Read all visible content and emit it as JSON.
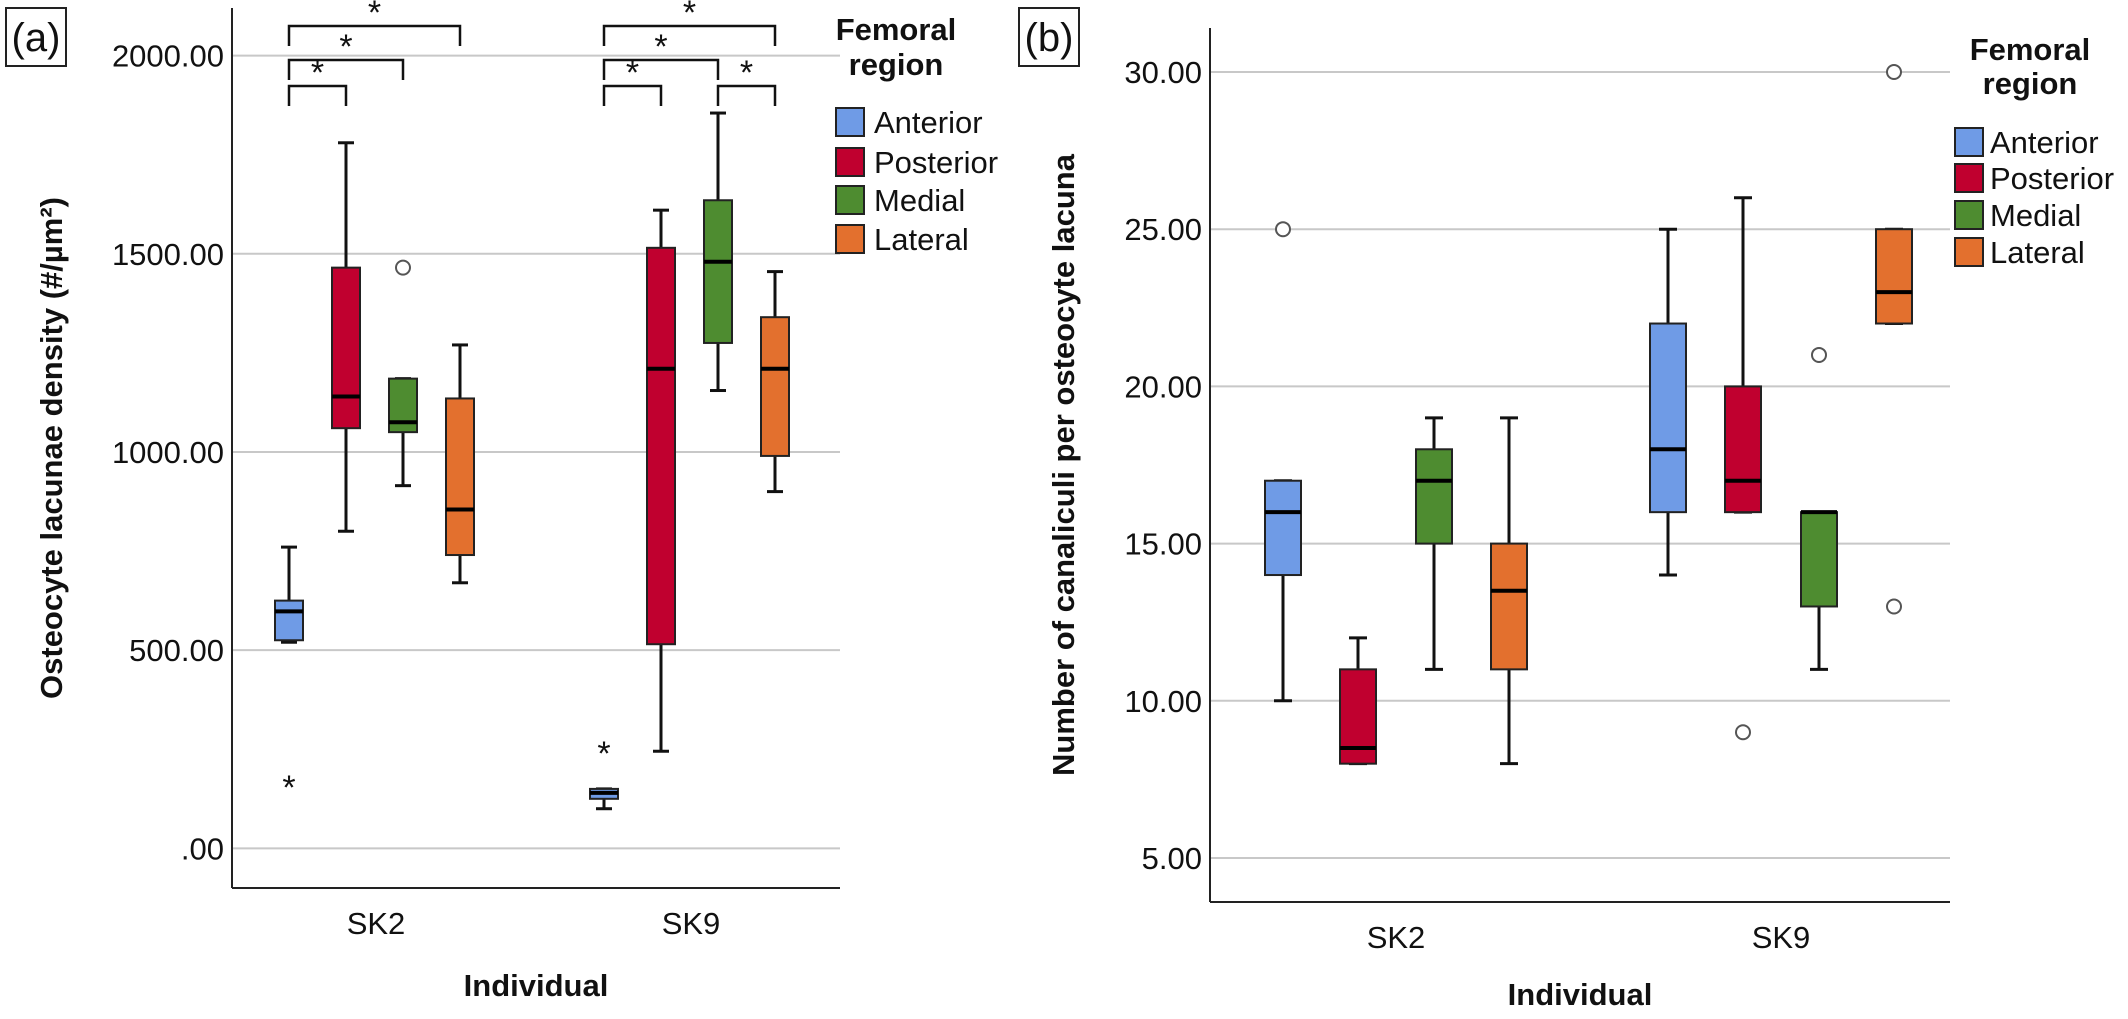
{
  "chart_data": [
    {
      "type": "box",
      "panel_label": "(a)",
      "xlabel": "Individual",
      "ylabel": "Osteocyte lacunae density  (#/µm²)",
      "ylim": [
        -100,
        2120
      ],
      "yticks": [
        0,
        500,
        1000,
        1500,
        2000
      ],
      "ytick_labels": [
        ".00",
        "500.00",
        "1000.00",
        "1500.00",
        "2000.00"
      ],
      "grid": true,
      "categories": [
        "SK2",
        "SK9"
      ],
      "legend": {
        "title": "Femoral region",
        "title_lines": [
          "Femoral",
          "region"
        ],
        "entries": [
          "Anterior",
          "Posterior",
          "Medial",
          "Lateral"
        ],
        "placement": "top-right"
      },
      "series": [
        {
          "name": "Anterior",
          "color": "#6f9be6",
          "boxes": [
            {
              "category": "SK2",
              "min": 520,
              "q1": 525,
              "median": 598,
              "q3": 625,
              "max": 760,
              "outliers": [],
              "extremes": [
                160
              ]
            },
            {
              "category": "SK9",
              "min": 100,
              "q1": 125,
              "median": 140,
              "q3": 150,
              "max": 150,
              "outliers": [],
              "extremes": [
                245
              ]
            }
          ]
        },
        {
          "name": "Posterior",
          "color": "#c0002f",
          "boxes": [
            {
              "category": "SK2",
              "min": 800,
              "q1": 1060,
              "median": 1140,
              "q3": 1465,
              "max": 1780,
              "outliers": [],
              "extremes": []
            },
            {
              "category": "SK9",
              "min": 245,
              "q1": 515,
              "median": 1210,
              "q3": 1515,
              "max": 1610,
              "outliers": [],
              "extremes": []
            }
          ]
        },
        {
          "name": "Medial",
          "color": "#4e8c30",
          "boxes": [
            {
              "category": "SK2",
              "min": 915,
              "q1": 1050,
              "median": 1075,
              "q3": 1185,
              "max": 1185,
              "outliers": [
                1465
              ],
              "extremes": []
            },
            {
              "category": "SK9",
              "min": 1155,
              "q1": 1275,
              "median": 1480,
              "q3": 1635,
              "max": 1855,
              "outliers": [],
              "extremes": []
            }
          ]
        },
        {
          "name": "Lateral",
          "color": "#e3702e",
          "boxes": [
            {
              "category": "SK2",
              "min": 670,
              "q1": 740,
              "median": 855,
              "q3": 1135,
              "max": 1270,
              "outliers": [],
              "extremes": []
            },
            {
              "category": "SK9",
              "min": 900,
              "q1": 990,
              "median": 1210,
              "q3": 1340,
              "max": 1455,
              "outliers": [],
              "extremes": []
            }
          ]
        }
      ],
      "annotations": {
        "significance": [
          {
            "category": "SK2",
            "from": "Anterior",
            "to": "Posterior",
            "label": "*",
            "level": 1
          },
          {
            "category": "SK2",
            "from": "Anterior",
            "to": "Medial",
            "label": "*",
            "level": 2
          },
          {
            "category": "SK2",
            "from": "Anterior",
            "to": "Lateral",
            "label": "*",
            "level": 3
          },
          {
            "category": "SK9",
            "from": "Anterior",
            "to": "Posterior",
            "label": "*",
            "level": 1
          },
          {
            "category": "SK9",
            "from": "Medial",
            "to": "Lateral",
            "label": "*",
            "level": 1
          },
          {
            "category": "SK9",
            "from": "Anterior",
            "to": "Medial",
            "label": "*",
            "level": 2
          },
          {
            "category": "SK9",
            "from": "Anterior",
            "to": "Lateral",
            "label": "*",
            "level": 3
          }
        ]
      }
    },
    {
      "type": "box",
      "panel_label": "(b)",
      "xlabel": "Individual",
      "ylabel": "Number of canaliculi per osteocyte lacuna",
      "ylim": [
        3.6,
        31.4
      ],
      "yticks": [
        5,
        10,
        15,
        20,
        25,
        30
      ],
      "ytick_labels": [
        "5.00",
        "10.00",
        "15.00",
        "20.00",
        "25.00",
        "30.00"
      ],
      "grid": true,
      "categories": [
        "SK2",
        "SK9"
      ],
      "legend": {
        "title": "Femoral region",
        "title_lines": [
          "Femoral",
          "region"
        ],
        "entries": [
          "Anterior",
          "Posterior",
          "Medial",
          "Lateral"
        ],
        "placement": "top-right"
      },
      "series": [
        {
          "name": "Anterior",
          "color": "#6f9be6",
          "boxes": [
            {
              "category": "SK2",
              "min": 10,
              "q1": 14,
              "median": 16,
              "q3": 17,
              "max": 17,
              "outliers": [
                25
              ],
              "extremes": []
            },
            {
              "category": "SK9",
              "min": 14,
              "q1": 16,
              "median": 18,
              "q3": 22,
              "max": 25,
              "outliers": [],
              "extremes": []
            }
          ]
        },
        {
          "name": "Posterior",
          "color": "#c0002f",
          "boxes": [
            {
              "category": "SK2",
              "min": 8,
              "q1": 8,
              "median": 8.5,
              "q3": 11,
              "max": 12,
              "outliers": [],
              "extremes": []
            },
            {
              "category": "SK9",
              "min": 16,
              "q1": 16,
              "median": 17,
              "q3": 20,
              "max": 26,
              "outliers": [
                9
              ],
              "extremes": []
            }
          ]
        },
        {
          "name": "Medial",
          "color": "#4e8c30",
          "boxes": [
            {
              "category": "SK2",
              "min": 11,
              "q1": 15,
              "median": 17,
              "q3": 18,
              "max": 19,
              "outliers": [],
              "extremes": []
            },
            {
              "category": "SK9",
              "min": 11,
              "q1": 13,
              "median": 16,
              "q3": 16,
              "max": 16,
              "outliers": [
                21
              ],
              "extremes": []
            }
          ]
        },
        {
          "name": "Lateral",
          "color": "#e3702e",
          "boxes": [
            {
              "category": "SK2",
              "min": 8,
              "q1": 11,
              "median": 13.5,
              "q3": 15,
              "max": 19,
              "outliers": [],
              "extremes": []
            },
            {
              "category": "SK9",
              "min": 22,
              "q1": 22,
              "median": 23,
              "q3": 25,
              "max": 25,
              "outliers": [
                30,
                13
              ],
              "extremes": []
            }
          ]
        }
      ]
    }
  ]
}
